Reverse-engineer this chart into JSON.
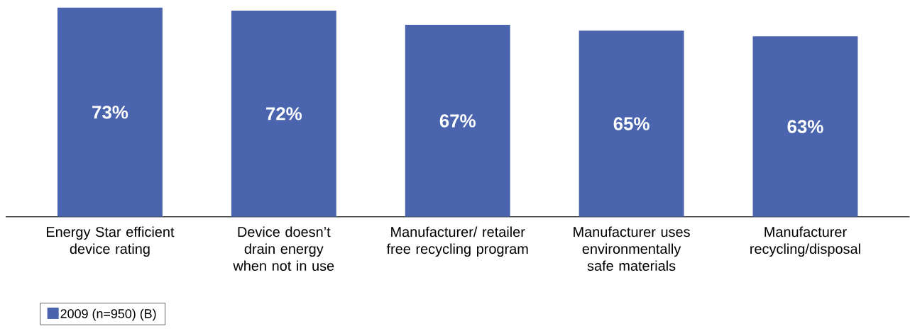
{
  "chart_data": {
    "type": "bar",
    "categories": [
      "Energy Star efficient device rating",
      "Device doesn’t drain energy when not in use",
      "Manufacturer/ retailer free recycling program",
      "Manufacturer uses environmentally safe materials",
      "Manufacturer recycling/disposal"
    ],
    "series": [
      {
        "name": "2009 (n=950) (B)",
        "color": "#4a64ad",
        "values": [
          73,
          72,
          67,
          65,
          63
        ],
        "value_labels": [
          "73%",
          "72%",
          "67%",
          "65%",
          "63%"
        ]
      }
    ],
    "legend": "bottom left"
  }
}
